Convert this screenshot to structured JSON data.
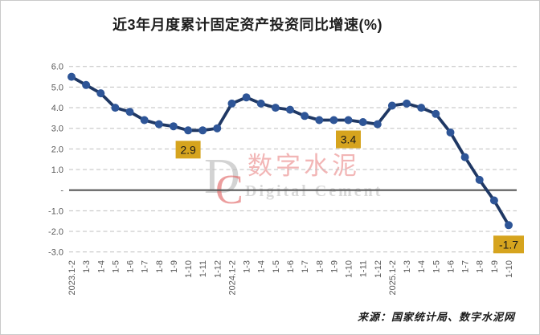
{
  "title": "近3年月度累计固定资产投资同比增速(%)",
  "source": "来源：国家统计局、数字水泥网",
  "watermark": {
    "monogram_d": "D",
    "monogram_c": "C",
    "cn": "数字水泥",
    "en": "Digital Cement"
  },
  "colors": {
    "line": "#1f3864",
    "marker": "#2e5597",
    "grid": "#bfbfbf",
    "zero_line": "#595959",
    "tick": "#595959",
    "annotation_bg": "#d6a41e",
    "annotation_text": "#1a1a1a"
  },
  "chart_data": {
    "type": "line",
    "title": "近3年月度累计固定资产投资同比增速(%)",
    "xlabel": "",
    "ylabel": "",
    "ylim": [
      -3.0,
      6.0
    ],
    "ytick_values": [
      6,
      5,
      4,
      3,
      2,
      1,
      0,
      -1,
      -2,
      -3
    ],
    "ytick_labels": [
      "6.0",
      "5.0",
      "4.0",
      "3.0",
      "2.0",
      "1.0",
      "-",
      "-1.0",
      "-2.0",
      "-3.0"
    ],
    "grid": "horizontal-dashed",
    "legend": "none",
    "categories": [
      "2023.1-2",
      "1-3",
      "1-4",
      "1-5",
      "1-6",
      "1-7",
      "1-8",
      "1-9",
      "1-10",
      "1-11",
      "1-12",
      "2024.1-2",
      "1-3",
      "1-4",
      "1-5",
      "1-6",
      "1-7",
      "1-8",
      "1-9",
      "1-10",
      "1-11",
      "1-12",
      "2025.1-2",
      "1-3",
      "1-4",
      "1-5",
      "1-6",
      "1-7",
      "1-8",
      "1-9",
      "1-10"
    ],
    "values": [
      5.5,
      5.1,
      4.7,
      4.0,
      3.8,
      3.4,
      3.2,
      3.1,
      2.9,
      2.9,
      3.0,
      4.2,
      4.5,
      4.2,
      4.0,
      3.9,
      3.6,
      3.4,
      3.4,
      3.4,
      3.3,
      3.2,
      4.1,
      4.2,
      4.0,
      3.7,
      2.8,
      1.6,
      0.5,
      -0.5,
      -1.7
    ],
    "annotations": [
      {
        "index": 8,
        "label": "2.9"
      },
      {
        "index": 19,
        "label": "3.4"
      },
      {
        "index": 30,
        "label": "-1.7"
      }
    ]
  }
}
